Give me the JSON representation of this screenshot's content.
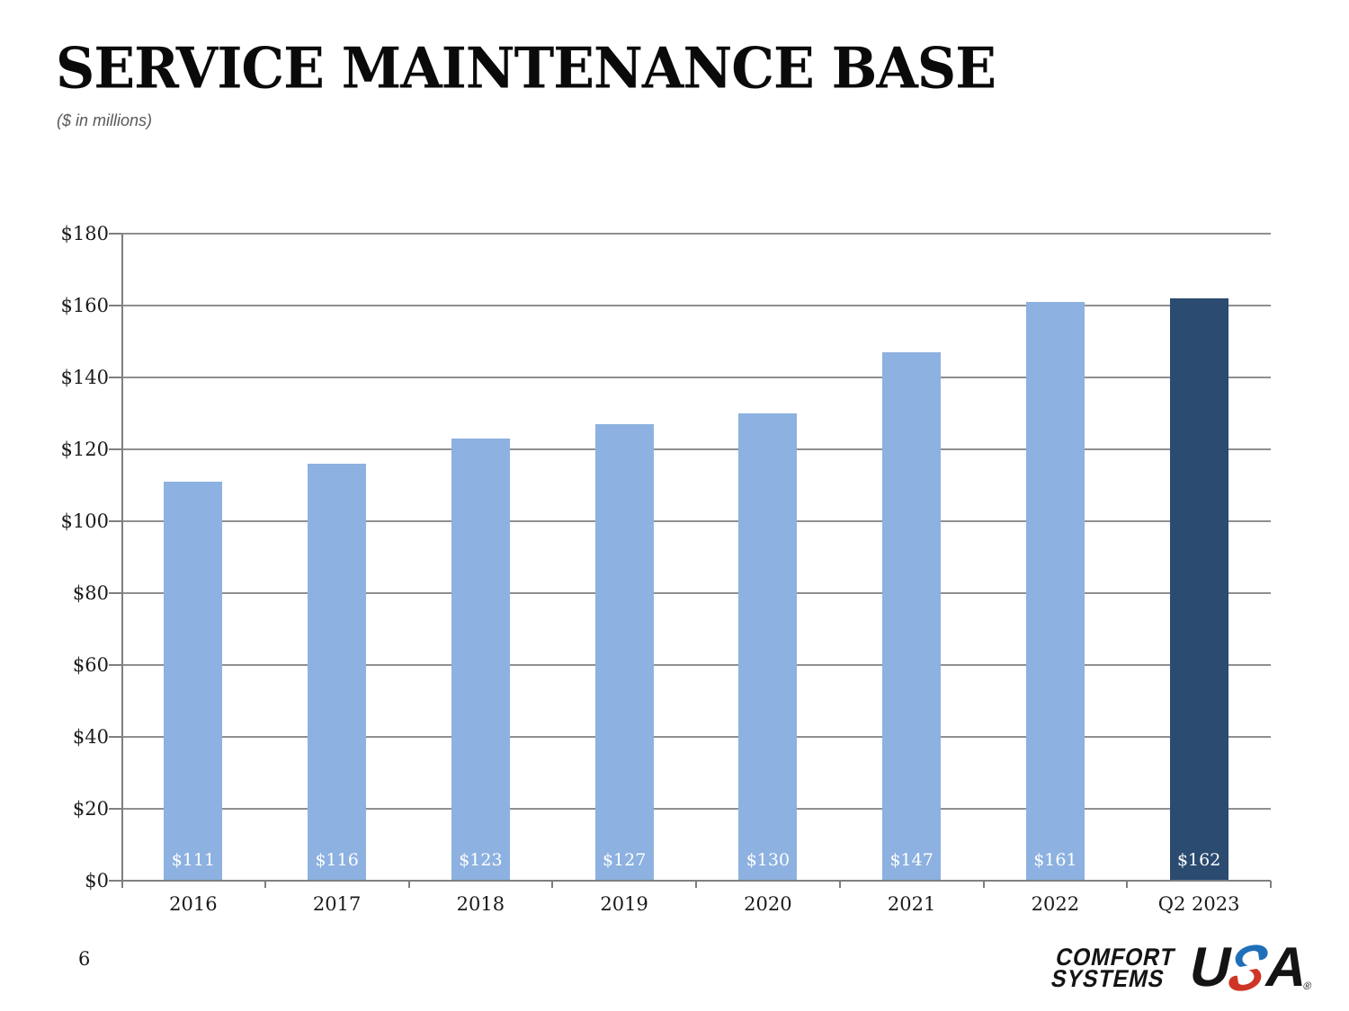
{
  "slide": {
    "title": "SERVICE MAINTENANCE BASE",
    "subtitle": "($ in millions)",
    "page_number": "6"
  },
  "footer": {
    "logo": {
      "line1": "COMFORT",
      "line2": "SYSTEMS",
      "usa_u": "U",
      "usa_a": "A",
      "registered_mark": "®",
      "blue": "#1F6FB8",
      "red": "#CE3526"
    }
  },
  "chart_data": {
    "type": "bar",
    "title": "SERVICE MAINTENANCE BASE",
    "subtitle": "($ in millions)",
    "categories": [
      "2016",
      "2017",
      "2018",
      "2019",
      "2020",
      "2021",
      "2022",
      "Q2 2023"
    ],
    "values": [
      111,
      116,
      123,
      127,
      130,
      147,
      161,
      162
    ],
    "bar_labels": [
      "$111",
      "$116",
      "$123",
      "$127",
      "$130",
      "$147",
      "$161",
      "$162"
    ],
    "xlabel": "",
    "ylabel": "",
    "ylim": [
      0,
      180
    ],
    "y_tick_step": 20,
    "y_tick_labels": [
      "$0",
      "$20",
      "$40",
      "$60",
      "$80",
      "$100",
      "$120",
      "$140",
      "$160",
      "$180"
    ],
    "grid": true,
    "legend": "none",
    "colors": {
      "bar_default": "#8DB1E0",
      "bar_highlight": "#2B4B70",
      "highlight_index": 7,
      "gridline": "#8f8f8f",
      "axis": "#7f7f7f",
      "bar_label_text": "#ffffff",
      "tick_label_text": "#1a1a1a"
    }
  }
}
